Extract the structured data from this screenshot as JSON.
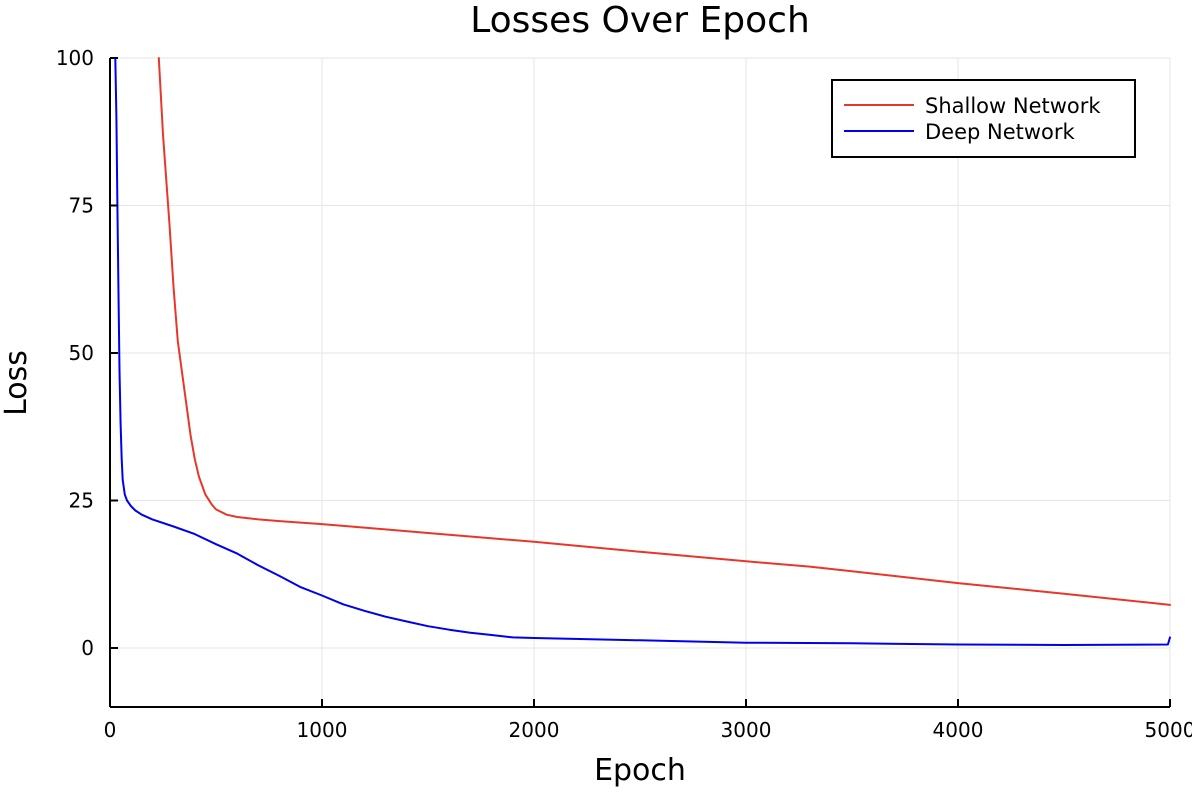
{
  "chart_data": {
    "type": "line",
    "title": "Losses Over Epoch",
    "xlabel": "Epoch",
    "ylabel": "Loss",
    "xlim": [
      0,
      5000
    ],
    "ylim": [
      -10,
      100
    ],
    "x_ticks": [
      0,
      1000,
      2000,
      3000,
      4000,
      5000
    ],
    "x_tick_labels": [
      "0",
      "1000",
      "2000",
      "3000",
      "4000",
      "5000"
    ],
    "y_ticks": [
      0,
      25,
      50,
      75,
      100
    ],
    "y_tick_labels": [
      "0",
      "25",
      "50",
      "75",
      "100"
    ],
    "grid": true,
    "legend_position": "top-right",
    "series": [
      {
        "name": "Shallow Network",
        "color": "#e8362a",
        "x": [
          230,
          250,
          280,
          300,
          320,
          350,
          380,
          400,
          420,
          450,
          480,
          500,
          550,
          600,
          700,
          800,
          1000,
          1200,
          1500,
          2000,
          2500,
          3000,
          3300,
          3500,
          4000,
          4500,
          5000
        ],
        "y": [
          100,
          87,
          72,
          61,
          52,
          44,
          36,
          32,
          29,
          26,
          24.3,
          23.5,
          22.6,
          22.2,
          21.8,
          21.5,
          21,
          20.4,
          19.5,
          18,
          16.3,
          14.7,
          13.8,
          13,
          11,
          9.2,
          7.3
        ]
      },
      {
        "name": "Deep Network",
        "color": "#0000f0",
        "x": [
          25,
          30,
          35,
          40,
          45,
          50,
          55,
          60,
          70,
          80,
          100,
          120,
          150,
          200,
          300,
          400,
          500,
          600,
          700,
          800,
          900,
          1000,
          1100,
          1200,
          1300,
          1400,
          1500,
          1600,
          1700,
          1800,
          1900,
          2000,
          2500,
          3000,
          3500,
          4000,
          4500,
          4990,
          5000
        ],
        "y": [
          100,
          90,
          75,
          60,
          47,
          38,
          32,
          28.5,
          26,
          25,
          24,
          23.3,
          22.6,
          21.8,
          20.6,
          19.3,
          17.6,
          16,
          14,
          12.2,
          10.3,
          8.9,
          7.4,
          6.3,
          5.3,
          4.5,
          3.7,
          3.1,
          2.6,
          2.2,
          1.8,
          1.7,
          1.3,
          0.9,
          0.8,
          0.6,
          0.5,
          0.6,
          1.8
        ]
      }
    ]
  }
}
